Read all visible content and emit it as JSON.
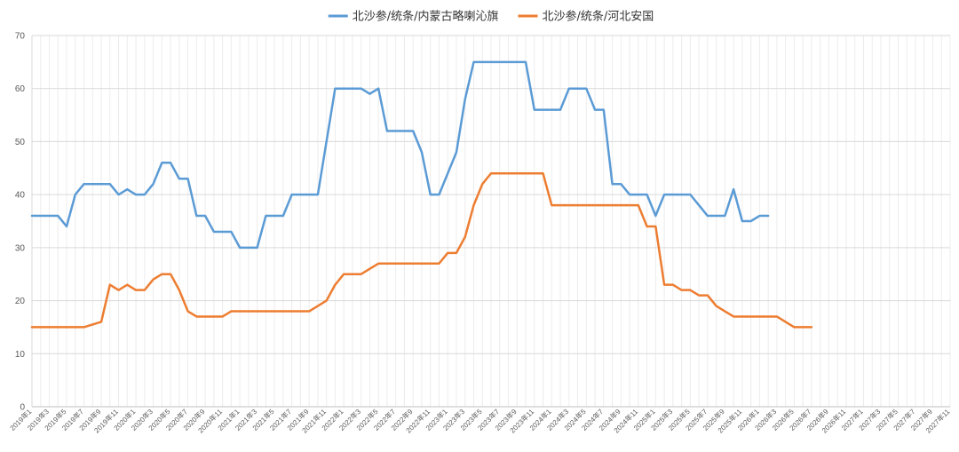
{
  "chart_data": {
    "type": "line",
    "title": "",
    "xlabel": "",
    "ylabel": "",
    "ylim": [
      0,
      70
    ],
    "yticks": [
      0,
      10,
      20,
      30,
      40,
      50,
      60,
      70
    ],
    "grid": true,
    "legend_position": "top",
    "x_labels": [
      "2019年1",
      "2019年3",
      "2019年5",
      "2019年7",
      "2019年9",
      "2019年11",
      "2020年1",
      "2020年3",
      "2020年5",
      "2020年7",
      "2020年9",
      "2020年11",
      "2021年1",
      "2021年3",
      "2021年5",
      "2021年7",
      "2021年9",
      "2021年11",
      "2022年1",
      "2022年3",
      "2022年5",
      "2022年7",
      "2022年9",
      "2022年11",
      "2023年1",
      "2023年3",
      "2023年5",
      "2023年7",
      "2023年9",
      "2023年11",
      "2024年1",
      "2024年3",
      "2024年5",
      "2024年7",
      "2024年9",
      "2024年11",
      "2025年1",
      "2025年3",
      "2025年5",
      "2025年7",
      "2025年9",
      "2025年11",
      "2026年1",
      "2026年3",
      "2026年5",
      "2026年7",
      "2026年9",
      "2026年11",
      "2027年1",
      "2027年3",
      "2027年5",
      "2027年7",
      "2027年9",
      "2027年11"
    ],
    "series": [
      {
        "name": "北沙参/统条/内蒙古略喇沁旗",
        "color": "#5B9BD5",
        "values": [
          36,
          36,
          36,
          36,
          34,
          40,
          42,
          42,
          42,
          42,
          40,
          41,
          40,
          40,
          42,
          46,
          46,
          43,
          43,
          36,
          36,
          33,
          33,
          33,
          30,
          30,
          30,
          36,
          36,
          36,
          40,
          40,
          40,
          40,
          50,
          60,
          60,
          60,
          60,
          59,
          60,
          52,
          52,
          52,
          52,
          48,
          40,
          40,
          44,
          48,
          58,
          65,
          65,
          65,
          65,
          65,
          65,
          65,
          56,
          56,
          56,
          56,
          60,
          60,
          60,
          56,
          56,
          42,
          42,
          40,
          40,
          40,
          36,
          40,
          40,
          40,
          40,
          38,
          36,
          36,
          36,
          41,
          35,
          35,
          36,
          36
        ]
      },
      {
        "name": "北沙参/统条/河北安国",
        "color": "#ED7D31",
        "values": [
          15,
          15,
          15,
          15,
          15,
          15,
          15,
          15.5,
          16,
          23,
          22,
          23,
          22,
          22,
          24,
          25,
          25,
          22,
          18,
          17,
          17,
          17,
          17,
          18,
          18,
          18,
          18,
          18,
          18,
          18,
          18,
          18,
          18,
          19,
          20,
          23,
          25,
          25,
          25,
          26,
          27,
          27,
          27,
          27,
          27,
          27,
          27,
          27,
          29,
          29,
          32,
          38,
          42,
          44,
          44,
          44,
          44,
          44,
          44,
          44,
          38,
          38,
          38,
          38,
          38,
          38,
          38,
          38,
          38,
          38,
          38,
          34,
          34,
          23,
          23,
          22,
          22,
          21,
          21,
          19,
          18,
          17,
          17,
          17,
          17,
          17,
          17,
          16,
          15,
          15,
          15
        ]
      }
    ]
  }
}
